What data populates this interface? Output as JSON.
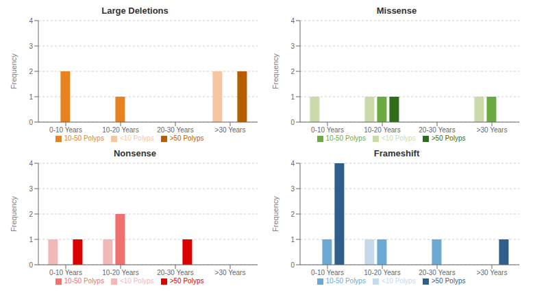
{
  "chart_data": [
    {
      "type": "bar",
      "title": "Large Deletions",
      "ylabel": "Frequency",
      "categories": [
        "0-10 Years",
        "10-20 Years",
        "20-30 Years",
        ">30 Years"
      ],
      "series": [
        {
          "name": "<10 Polyps",
          "color": "#f5c6a0",
          "values": [
            0,
            0,
            0,
            2
          ]
        },
        {
          "name": "10-50 Polyps",
          "color": "#e8821e",
          "values": [
            2,
            1,
            0,
            0
          ]
        },
        {
          "name": ">50 Polyps",
          "color": "#b85c00",
          "values": [
            0,
            0,
            0,
            2
          ]
        }
      ],
      "ylim": [
        0,
        4
      ],
      "yticks": [
        0,
        1,
        2,
        3,
        4
      ],
      "grid": true,
      "legend": "bottom"
    },
    {
      "type": "bar",
      "title": "Missense",
      "ylabel": "Frequency",
      "categories": [
        "0-10 Years",
        "10-20 Years",
        "20-30 Years",
        ">30 Years"
      ],
      "series": [
        {
          "name": "<10 Polyps",
          "color": "#c8dba8",
          "values": [
            1,
            1,
            0,
            1
          ]
        },
        {
          "name": "10-50 Polyps",
          "color": "#6aaa40",
          "values": [
            0,
            1,
            0,
            1
          ]
        },
        {
          "name": ">50 Polyps",
          "color": "#2d6e18",
          "values": [
            0,
            1,
            0,
            0
          ]
        }
      ],
      "ylim": [
        0,
        4
      ],
      "yticks": [
        0,
        1,
        2,
        3,
        4
      ],
      "grid": true,
      "legend": "bottom"
    },
    {
      "type": "bar",
      "title": "Nonsense",
      "ylabel": "Frequency",
      "categories": [
        "0-10 Years",
        "10-20 Years",
        "20-30 Years",
        ">30 Years"
      ],
      "series": [
        {
          "name": "<10 Polyps",
          "color": "#f2b8b8",
          "values": [
            1,
            1,
            0,
            0
          ]
        },
        {
          "name": "10-50 Polyps",
          "color": "#f07070",
          "values": [
            0,
            2,
            0,
            0
          ]
        },
        {
          "name": ">50 Polyps",
          "color": "#dd0000",
          "values": [
            1,
            0,
            1,
            0
          ]
        }
      ],
      "ylim": [
        0,
        4
      ],
      "yticks": [
        0,
        1,
        2,
        3,
        4
      ],
      "grid": true,
      "legend": "bottom"
    },
    {
      "type": "bar",
      "title": "Frameshift",
      "ylabel": "Frequency",
      "categories": [
        "0-10 Years",
        "10-20 Years",
        "20-30 Years",
        ">30 Years"
      ],
      "series": [
        {
          "name": "<10 Polyps",
          "color": "#c5d8ec",
          "values": [
            0,
            1,
            0,
            0
          ]
        },
        {
          "name": "10-50 Polyps",
          "color": "#6aaad4",
          "values": [
            1,
            1,
            1,
            0
          ]
        },
        {
          "name": ">50 Polyps",
          "color": "#2e5f8a",
          "values": [
            4,
            0,
            0,
            1
          ]
        }
      ],
      "ylim": [
        0,
        4
      ],
      "yticks": [
        0,
        1,
        2,
        3,
        4
      ],
      "grid": true,
      "legend": "bottom"
    }
  ]
}
